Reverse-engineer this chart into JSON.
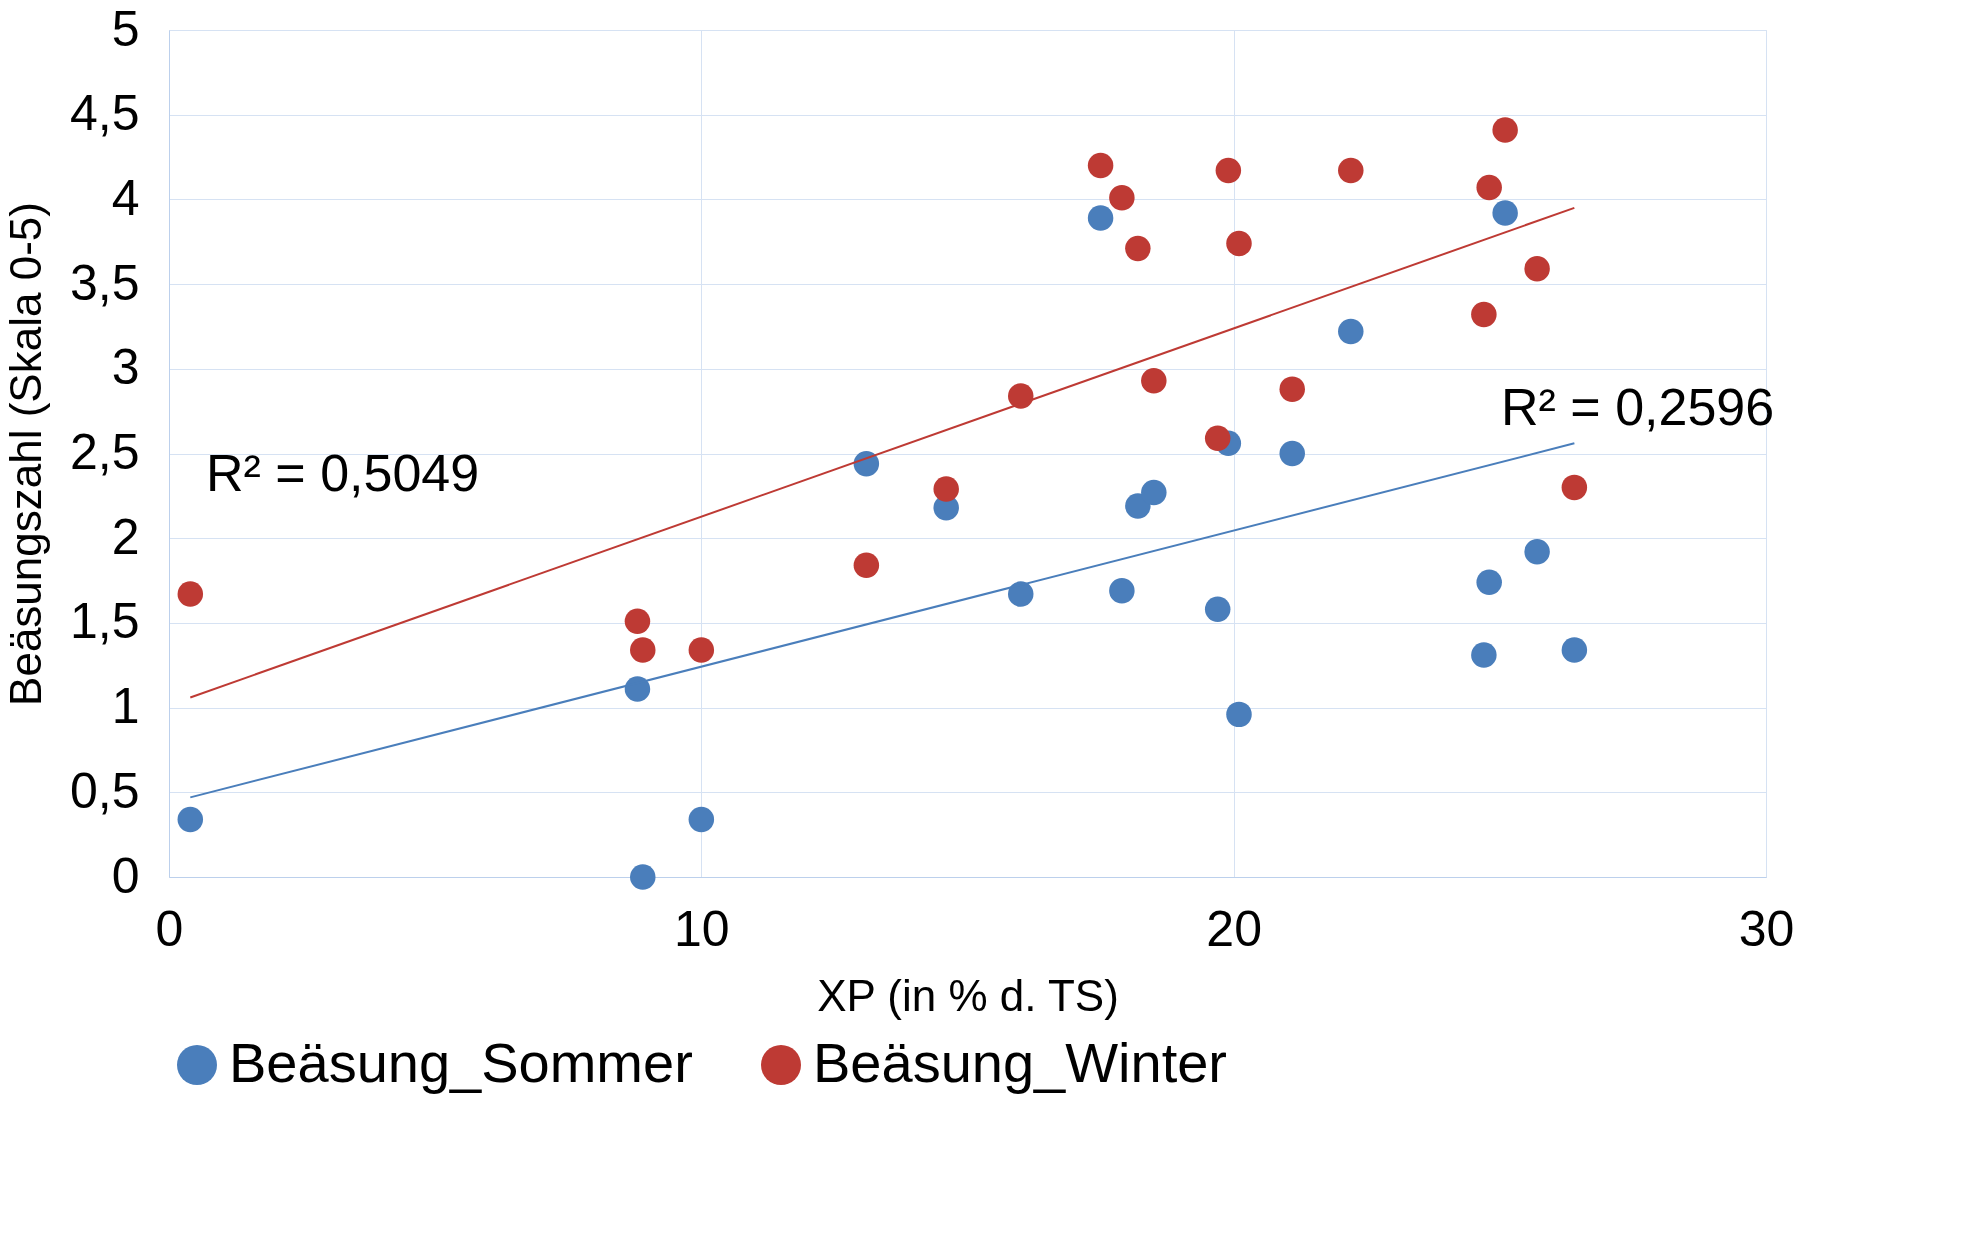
{
  "chart_data": {
    "type": "scatter",
    "xlabel": "XP (in % d. TS)",
    "ylabel": "Beäsungszahl (Skala 0-5)",
    "xlim": [
      0,
      30
    ],
    "xticks": [
      0,
      10,
      20,
      30
    ],
    "ylim": [
      0,
      5
    ],
    "yticks": [
      0,
      {
        "value": 0.5,
        "label": "0,5"
      },
      1,
      {
        "value": 1.5,
        "label": "1,5"
      },
      2,
      {
        "value": 2.5,
        "label": "2,5"
      },
      3,
      {
        "value": 3.5,
        "label": "3,5"
      },
      4,
      {
        "value": 4.5,
        "label": "4,5"
      },
      5
    ],
    "grid": true,
    "legend": "bottom",
    "marker": "circle",
    "series": [
      {
        "name": "Beäsung_Sommer",
        "color": "#4a7ebb",
        "x": [
          0.4,
          8.9,
          10,
          8.8,
          13.1,
          14.6,
          16,
          17.5,
          17.9,
          18.2,
          18.5,
          19.7,
          19.9,
          20.1,
          21.1,
          22.2,
          24.7,
          24.8,
          25.1,
          25.7,
          26.4
        ],
        "values": [
          0.34,
          0,
          0.34,
          1.11,
          2.44,
          2.18,
          1.67,
          3.89,
          1.69,
          2.19,
          2.27,
          1.58,
          2.56,
          0.96,
          2.5,
          3.22,
          1.31,
          1.74,
          3.92,
          1.92,
          1.34
        ]
      },
      {
        "name": "Beäsung_Winter",
        "color": "#be3a34",
        "x": [
          0.4,
          8.8,
          8.9,
          10,
          13.1,
          14.6,
          16,
          17.5,
          17.9,
          18.2,
          18.5,
          19.7,
          19.9,
          20.1,
          21.1,
          22.2,
          24.7,
          24.8,
          25.1,
          25.7,
          26.4
        ],
        "values": [
          1.67,
          1.51,
          1.34,
          1.34,
          1.84,
          2.29,
          2.84,
          4.2,
          4.01,
          3.71,
          2.93,
          2.59,
          4.17,
          3.74,
          2.88,
          4.17,
          3.32,
          4.07,
          4.41,
          3.59,
          2.3
        ]
      },
      {
        "type": "line",
        "marker": "none",
        "color": "#be3a34",
        "x": [
          0.4,
          26.4
        ],
        "values": [
          1.06,
          3.95
        ]
      },
      {
        "type": "line",
        "marker": "none",
        "color": "#4a7ebb",
        "x": [
          0.4,
          26.4
        ],
        "values": [
          0.47,
          2.56
        ]
      }
    ],
    "annotations": [
      "R² = 0,5049",
      "R² = 0,2596"
    ]
  }
}
